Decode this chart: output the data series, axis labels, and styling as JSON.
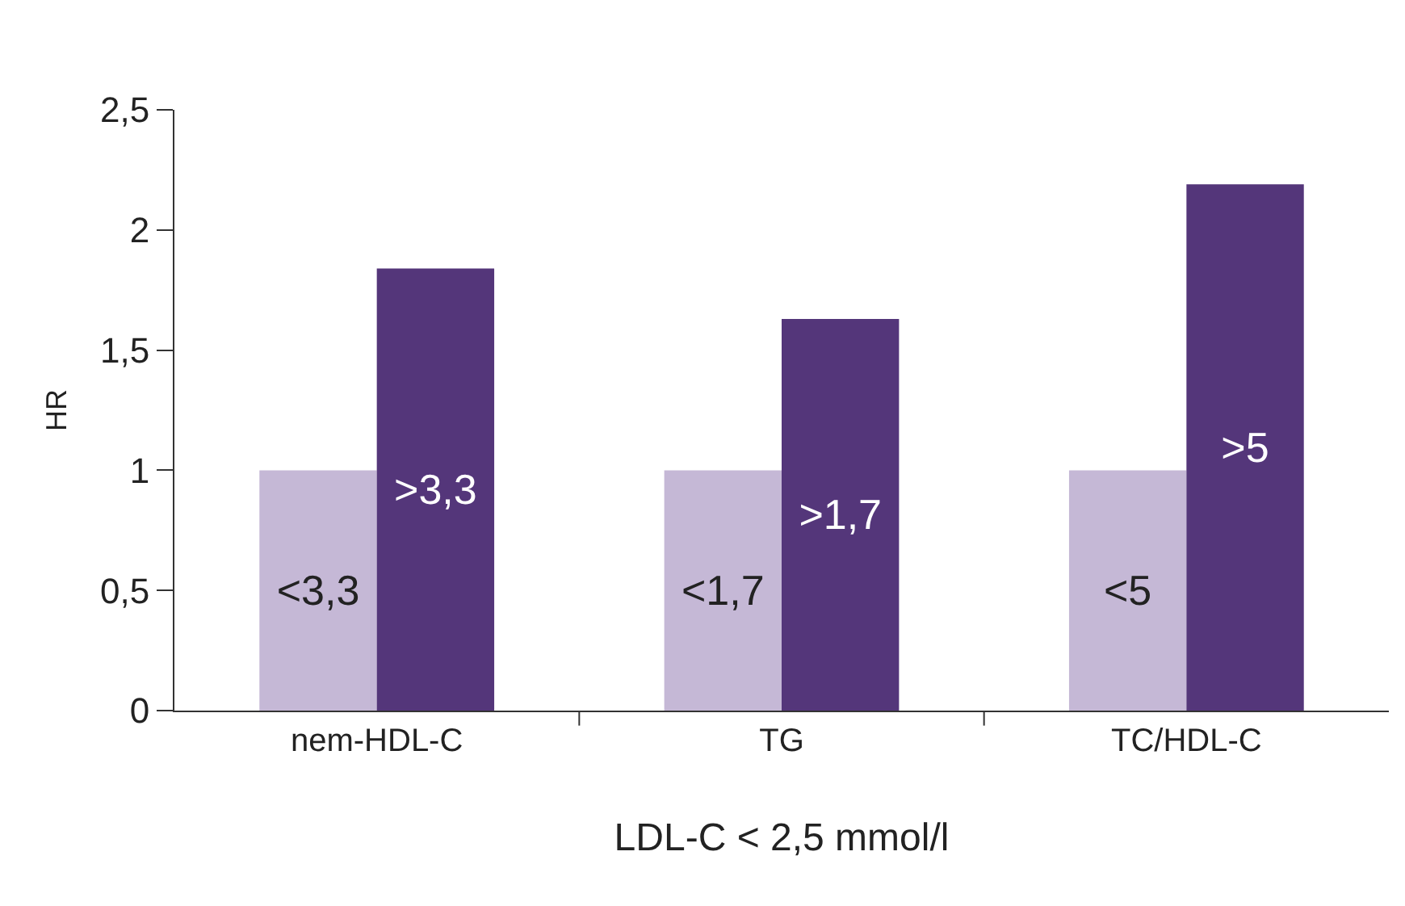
{
  "chart_data": {
    "type": "bar",
    "categories": [
      "nem-HDL-C",
      "TG",
      "TC/HDL-C"
    ],
    "series": [
      {
        "color": "#c5b8d6",
        "values": [
          1.0,
          1.0,
          1.0
        ],
        "value_labels": [
          "<3,3",
          "<1,7",
          "<5"
        ]
      },
      {
        "color": "#54367a",
        "values": [
          1.84,
          1.63,
          2.19
        ],
        "value_labels": [
          ">3,3",
          ">1,7",
          ">5"
        ]
      }
    ],
    "xlabel": "LDL-C < 2,5 mmol/l",
    "ylabel": "HR",
    "ylim": [
      0,
      2.5
    ],
    "yticks": [
      0,
      {
        "value": 0.5,
        "label": "0,5"
      },
      1,
      {
        "value": 1.5,
        "label": "1,5"
      },
      2,
      {
        "value": 2.5,
        "label": "2,5"
      }
    ]
  }
}
